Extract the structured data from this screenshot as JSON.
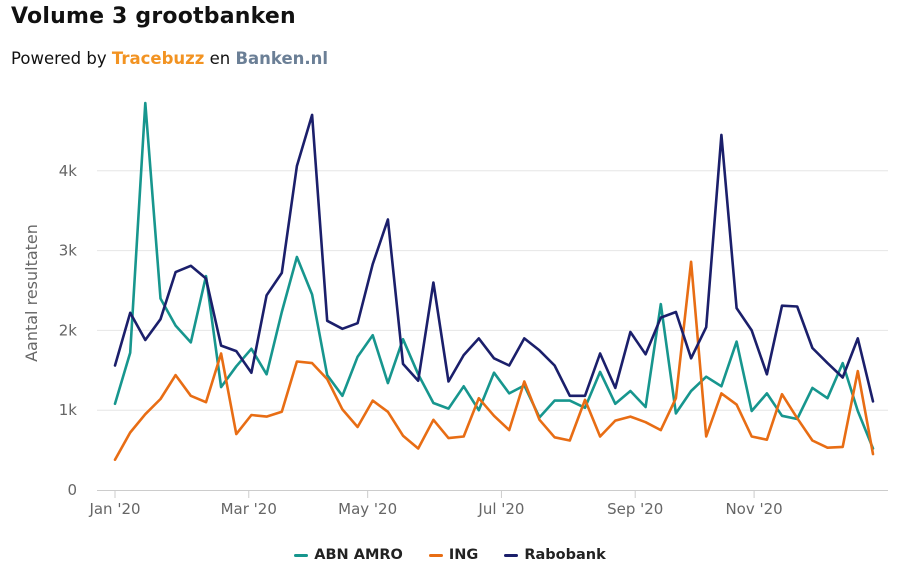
{
  "header": {
    "title": "Volume 3 grootbanken",
    "subtitle_prefix": "Powered by ",
    "brand1": "Tracebuzz",
    "subtitle_mid": " en ",
    "brand2": "Banken.nl"
  },
  "colors": {
    "abn": "#17968e",
    "ing": "#e86d14",
    "rabo": "#1b1f6b",
    "grid": "#e6e6e6",
    "brand1": "#f29322",
    "brand2": "#6b7f96"
  },
  "chart_data": {
    "type": "line",
    "title": "Volume 3 grootbanken",
    "xlabel": "",
    "ylabel": "Aantal resultaten",
    "ylim": [
      0,
      5000
    ],
    "y_ticks": [
      0,
      1000,
      2000,
      3000,
      4000
    ],
    "y_tick_labels": [
      "0",
      "1k",
      "2k",
      "3k",
      "4k"
    ],
    "x_tick_labels": [
      "Jan '20",
      "Mar '20",
      "May '20",
      "Jul '20",
      "Sep '20",
      "Nov '20"
    ],
    "x_tick_weeks": [
      0,
      9,
      17,
      26,
      35,
      43
    ],
    "weeks": 52,
    "legend_position": "bottom-center",
    "series": [
      {
        "name": "ABN AMRO",
        "values": [
          1080,
          1720,
          4850,
          2400,
          2060,
          1850,
          2680,
          1290,
          1550,
          1770,
          1450,
          2230,
          2920,
          2450,
          1440,
          1180,
          1670,
          1940,
          1340,
          1890,
          1450,
          1090,
          1020,
          1300,
          1000,
          1470,
          1210,
          1310,
          910,
          1120,
          1120,
          1030,
          1480,
          1080,
          1240,
          1040,
          2330,
          960,
          1240,
          1420,
          1300,
          1860,
          990,
          1210,
          930,
          890,
          1280,
          1150,
          1590,
          990,
          520
        ]
      },
      {
        "name": "ING",
        "values": [
          380,
          720,
          950,
          1140,
          1440,
          1180,
          1100,
          1710,
          700,
          940,
          920,
          980,
          1610,
          1590,
          1390,
          1010,
          790,
          1120,
          980,
          680,
          520,
          880,
          650,
          670,
          1150,
          930,
          750,
          1360,
          880,
          660,
          620,
          1130,
          670,
          870,
          920,
          850,
          750,
          1150,
          2860,
          670,
          1210,
          1070,
          670,
          630,
          1200,
          900,
          620,
          530,
          540,
          1490,
          450
        ]
      },
      {
        "name": "Rabobank",
        "values": [
          1560,
          2220,
          1880,
          2140,
          2730,
          2810,
          2650,
          1810,
          1740,
          1470,
          2440,
          2720,
          4060,
          4700,
          2120,
          2020,
          2090,
          2830,
          3390,
          1580,
          1370,
          2600,
          1360,
          1690,
          1900,
          1650,
          1560,
          1900,
          1750,
          1560,
          1180,
          1180,
          1710,
          1280,
          1980,
          1700,
          2160,
          2230,
          1650,
          2040,
          4450,
          2280,
          2000,
          1450,
          2310,
          2300,
          1780,
          1590,
          1410,
          1900,
          1110
        ]
      }
    ]
  }
}
